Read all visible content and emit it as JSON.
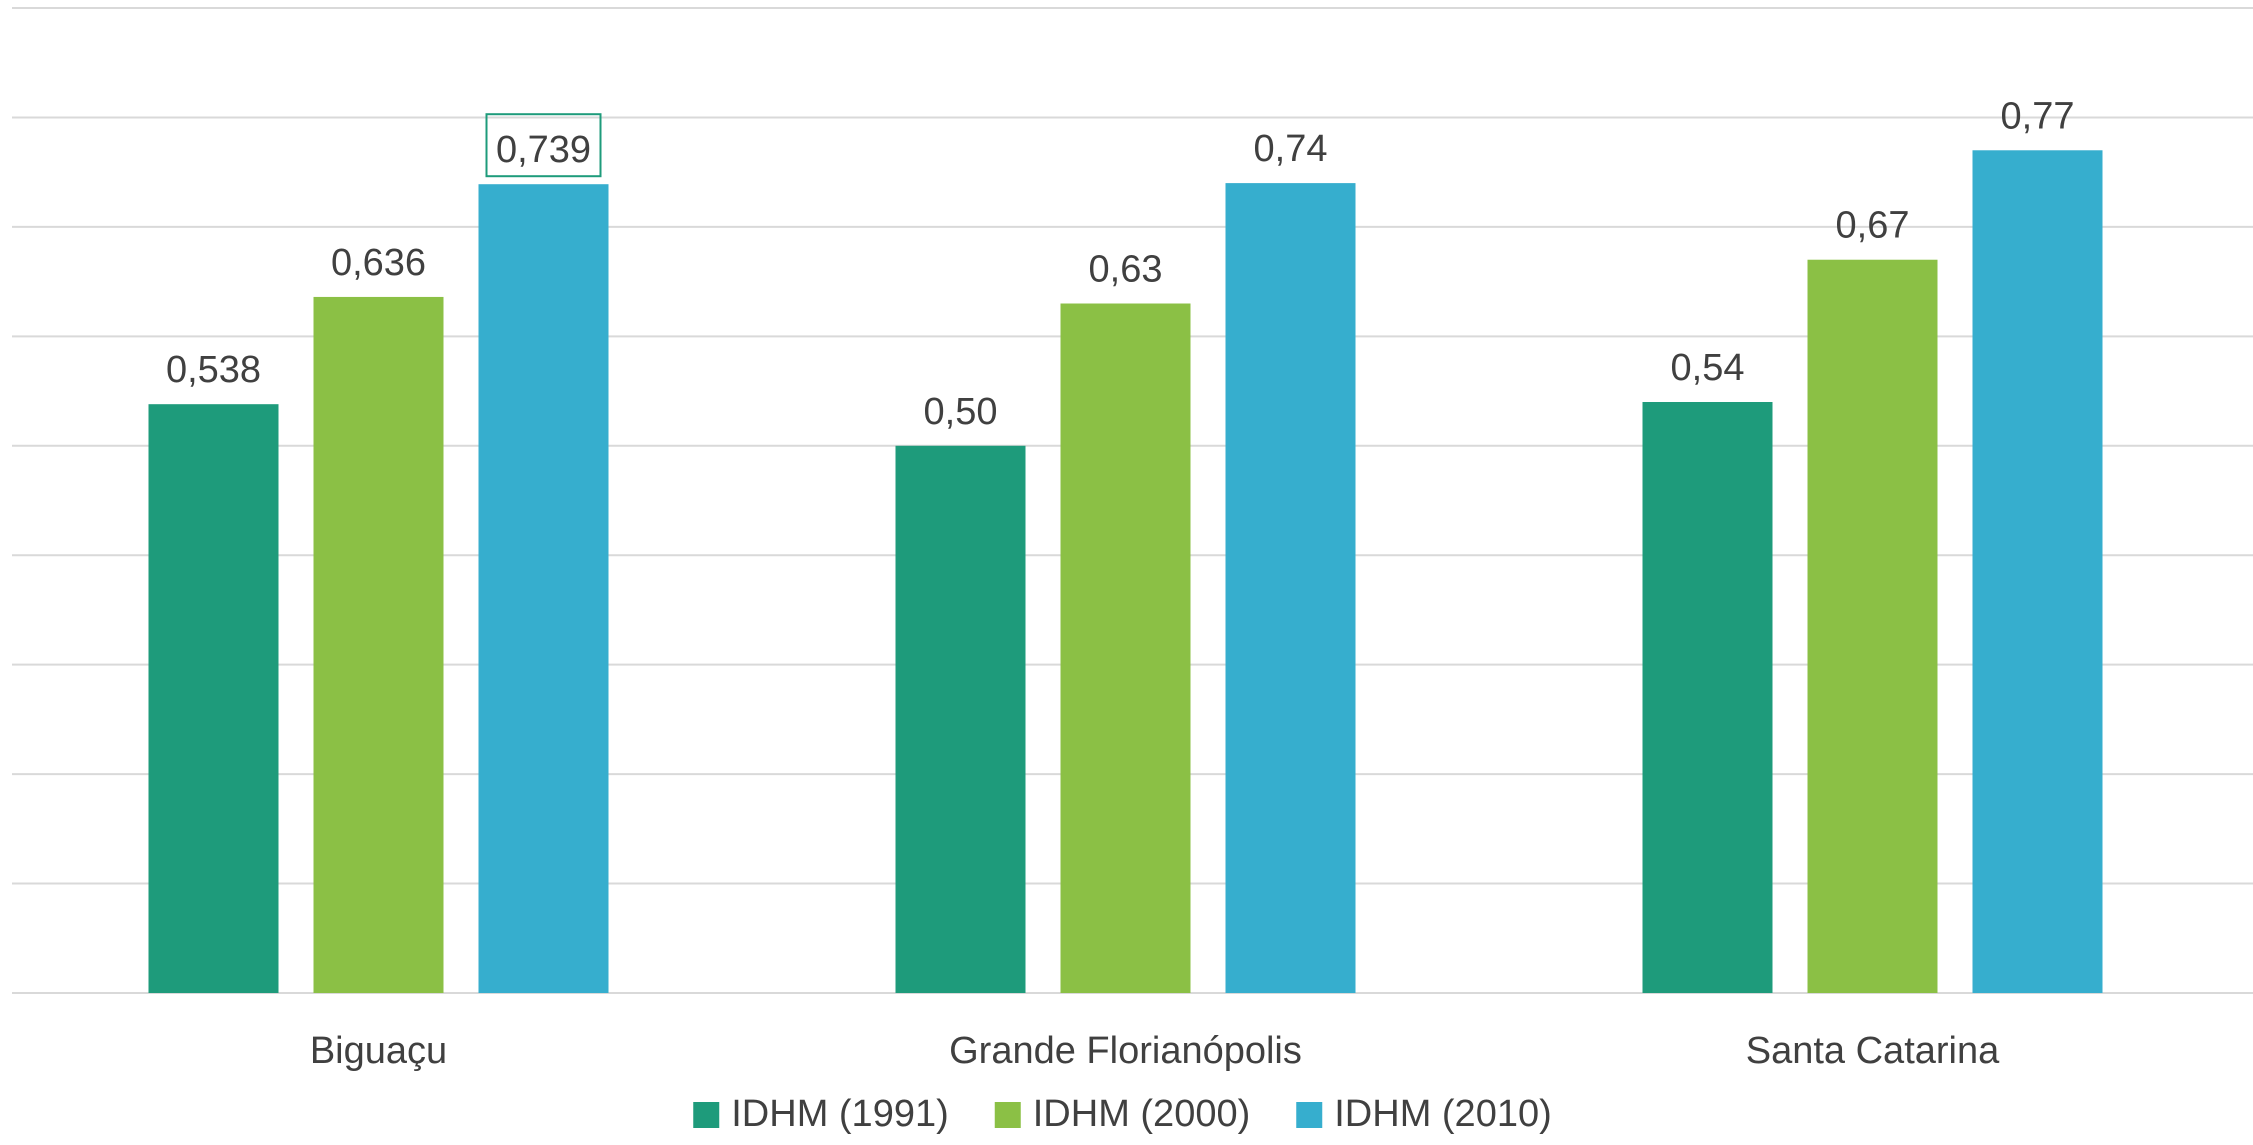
{
  "chart_data": {
    "type": "bar",
    "categories": [
      "Biguaçu",
      "Grande Florianópolis",
      "Santa Catarina"
    ],
    "series": [
      {
        "name": "IDHM (1991)",
        "color": "#1e9b7b",
        "values": [
          0.538,
          0.5,
          0.54
        ],
        "labels": [
          "0,538",
          "0,50",
          "0,54"
        ]
      },
      {
        "name": "IDHM (2000)",
        "color": "#8bc045",
        "values": [
          0.636,
          0.63,
          0.67
        ],
        "labels": [
          "0,636",
          "0,63",
          "0,67"
        ]
      },
      {
        "name": "IDHM (2010)",
        "color": "#36aece",
        "values": [
          0.739,
          0.74,
          0.77
        ],
        "labels": [
          "0,739",
          "0,74",
          "0,77"
        ]
      }
    ],
    "ylim": [
      0,
      0.9
    ],
    "gridline_step": 0.1,
    "grid": true,
    "y_axis_labels_visible": false,
    "legend_position": "bottom",
    "highlighted_label": {
      "series": 2,
      "category": 0,
      "color": "#1e9b7b"
    }
  }
}
